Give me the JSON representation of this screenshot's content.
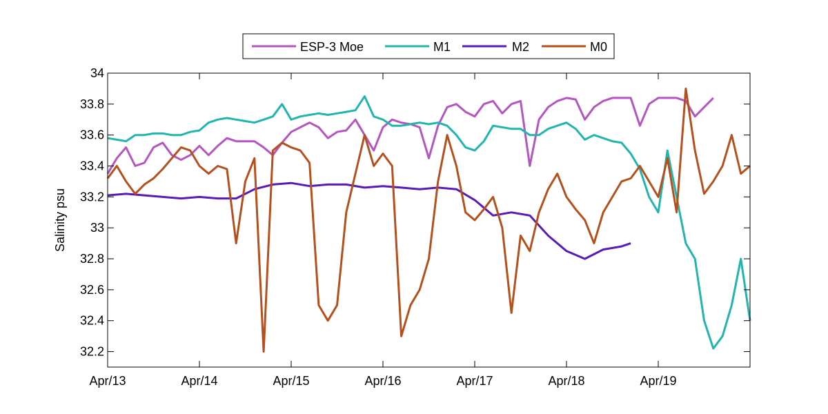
{
  "chart_data": {
    "type": "line",
    "title": "",
    "xlabel": "",
    "ylabel": "Salinity psu",
    "xlim": [
      "2016-04-13",
      "2016-04-20"
    ],
    "ylim": [
      32.1,
      34
    ],
    "x_ticks": [
      "Apr/13",
      "Apr/14",
      "Apr/15",
      "Apr/16",
      "Apr/17",
      "Apr/18",
      "Apr/19"
    ],
    "y_ticks": [
      "34",
      "33.8",
      "33.6",
      "33.4",
      "33.2",
      "33",
      "32.8",
      "32.6",
      "32.4",
      "32.2"
    ],
    "y_tick_values": [
      34,
      33.8,
      33.6,
      33.4,
      33.2,
      33.0,
      32.8,
      32.6,
      32.4,
      32.2
    ],
    "grid": false,
    "legend_position": "top-center",
    "series": [
      {
        "name": "ESP-3 Moe",
        "color": "#b555c2",
        "x": [
          0,
          0.1,
          0.2,
          0.3,
          0.4,
          0.5,
          0.6,
          0.7,
          0.8,
          0.9,
          1.0,
          1.1,
          1.2,
          1.3,
          1.4,
          1.5,
          1.6,
          1.7,
          1.8,
          1.9,
          2.0,
          2.1,
          2.2,
          2.3,
          2.4,
          2.5,
          2.6,
          2.7,
          2.8,
          2.9,
          3.0,
          3.1,
          3.2,
          3.3,
          3.4,
          3.5,
          3.6,
          3.7,
          3.8,
          3.9,
          4.0,
          4.1,
          4.2,
          4.3,
          4.4,
          4.5,
          4.6,
          4.7,
          4.8,
          4.9,
          5.0,
          5.1,
          5.2,
          5.3,
          5.4,
          5.5,
          5.6,
          5.7,
          5.8,
          5.9,
          6.0,
          6.1,
          6.2,
          6.3,
          6.4,
          6.5,
          6.6
        ],
        "y": [
          33.35,
          33.45,
          33.52,
          33.4,
          33.42,
          33.52,
          33.55,
          33.47,
          33.44,
          33.47,
          33.53,
          33.47,
          33.53,
          33.58,
          33.56,
          33.56,
          33.56,
          33.52,
          33.47,
          33.55,
          33.62,
          33.65,
          33.68,
          33.65,
          33.58,
          33.62,
          33.63,
          33.7,
          33.6,
          33.5,
          33.65,
          33.7,
          33.68,
          33.67,
          33.65,
          33.45,
          33.66,
          33.78,
          33.8,
          33.75,
          33.72,
          33.8,
          33.82,
          33.74,
          33.8,
          33.82,
          33.4,
          33.7,
          33.78,
          33.82,
          33.84,
          33.83,
          33.7,
          33.78,
          33.82,
          33.84,
          33.84,
          33.84,
          33.66,
          33.8,
          33.84,
          33.84,
          33.84,
          33.82,
          33.72,
          33.78,
          33.84
        ]
      },
      {
        "name": "M1",
        "color": "#21b5b0",
        "x": [
          0,
          0.1,
          0.2,
          0.3,
          0.4,
          0.5,
          0.6,
          0.7,
          0.8,
          0.9,
          1.0,
          1.1,
          1.2,
          1.3,
          1.4,
          1.5,
          1.6,
          1.7,
          1.8,
          1.9,
          2.0,
          2.1,
          2.2,
          2.3,
          2.4,
          2.5,
          2.6,
          2.7,
          2.8,
          2.9,
          3.0,
          3.1,
          3.2,
          3.3,
          3.4,
          3.5,
          3.6,
          3.7,
          3.8,
          3.9,
          4.0,
          4.1,
          4.2,
          4.3,
          4.4,
          4.5,
          4.6,
          4.7,
          4.8,
          4.9,
          5.0,
          5.1,
          5.2,
          5.3,
          5.4,
          5.5,
          5.6,
          5.7,
          5.8,
          5.9,
          6.0,
          6.1,
          6.2,
          6.3,
          6.4,
          6.5,
          6.6,
          6.7,
          6.8,
          6.9,
          7.0
        ],
        "y": [
          33.58,
          33.57,
          33.56,
          33.6,
          33.6,
          33.61,
          33.61,
          33.6,
          33.6,
          33.62,
          33.63,
          33.68,
          33.7,
          33.71,
          33.7,
          33.69,
          33.68,
          33.7,
          33.72,
          33.8,
          33.7,
          33.72,
          33.73,
          33.74,
          33.73,
          33.74,
          33.75,
          33.76,
          33.85,
          33.72,
          33.7,
          33.66,
          33.66,
          33.67,
          33.68,
          33.67,
          33.68,
          33.66,
          33.6,
          33.52,
          33.5,
          33.56,
          33.66,
          33.65,
          33.64,
          33.64,
          33.6,
          33.6,
          33.64,
          33.66,
          33.68,
          33.64,
          33.57,
          33.6,
          33.58,
          33.56,
          33.55,
          33.48,
          33.38,
          33.2,
          33.1,
          33.5,
          33.2,
          32.9,
          32.8,
          32.4,
          32.22,
          32.3,
          32.5,
          32.8,
          32.4
        ]
      },
      {
        "name": "M2",
        "color": "#5a1ab8",
        "x": [
          0,
          0.2,
          0.4,
          0.6,
          0.8,
          1.0,
          1.2,
          1.4,
          1.6,
          1.8,
          2.0,
          2.2,
          2.4,
          2.6,
          2.8,
          3.0,
          3.2,
          3.4,
          3.6,
          3.8,
          4.0,
          4.2,
          4.4,
          4.6,
          4.8,
          5.0,
          5.2,
          5.4,
          5.6,
          5.7
        ],
        "y": [
          33.21,
          33.22,
          33.21,
          33.2,
          33.19,
          33.2,
          33.19,
          33.19,
          33.25,
          33.28,
          33.29,
          33.27,
          33.28,
          33.28,
          33.26,
          33.27,
          33.26,
          33.25,
          33.26,
          33.25,
          33.18,
          33.08,
          33.1,
          33.08,
          32.95,
          32.85,
          32.8,
          32.86,
          32.88,
          32.9
        ]
      },
      {
        "name": "M0",
        "color": "#b5501c",
        "x": [
          0,
          0.1,
          0.2,
          0.3,
          0.4,
          0.5,
          0.6,
          0.7,
          0.8,
          0.9,
          1.0,
          1.1,
          1.2,
          1.3,
          1.4,
          1.5,
          1.6,
          1.7,
          1.8,
          1.9,
          2.0,
          2.1,
          2.2,
          2.3,
          2.4,
          2.5,
          2.6,
          2.7,
          2.8,
          2.9,
          3.0,
          3.1,
          3.2,
          3.3,
          3.4,
          3.5,
          3.6,
          3.7,
          3.8,
          3.9,
          4.0,
          4.1,
          4.2,
          4.3,
          4.4,
          4.5,
          4.6,
          4.7,
          4.8,
          4.9,
          5.0,
          5.1,
          5.2,
          5.3,
          5.4,
          5.5,
          5.6,
          5.7,
          5.8,
          5.9,
          6.0,
          6.1,
          6.2,
          6.3,
          6.4,
          6.5,
          6.6,
          6.7,
          6.8,
          6.9,
          7.0
        ],
        "y": [
          33.32,
          33.4,
          33.3,
          33.22,
          33.28,
          33.32,
          33.38,
          33.45,
          33.52,
          33.5,
          33.4,
          33.35,
          33.4,
          33.38,
          32.9,
          33.3,
          33.45,
          32.2,
          33.5,
          33.55,
          33.52,
          33.5,
          33.42,
          32.5,
          32.4,
          32.5,
          33.1,
          33.35,
          33.6,
          33.4,
          33.48,
          33.4,
          32.3,
          32.5,
          32.6,
          32.8,
          33.3,
          33.6,
          33.4,
          33.1,
          33.05,
          33.12,
          33.2,
          33.0,
          32.45,
          32.95,
          32.85,
          33.1,
          33.25,
          33.35,
          33.2,
          33.12,
          33.05,
          32.9,
          33.1,
          33.2,
          33.3,
          33.32,
          33.4,
          33.3,
          33.2,
          33.45,
          33.1,
          33.9,
          33.5,
          33.22,
          33.3,
          33.4,
          33.6,
          33.35,
          33.4
        ]
      }
    ]
  }
}
